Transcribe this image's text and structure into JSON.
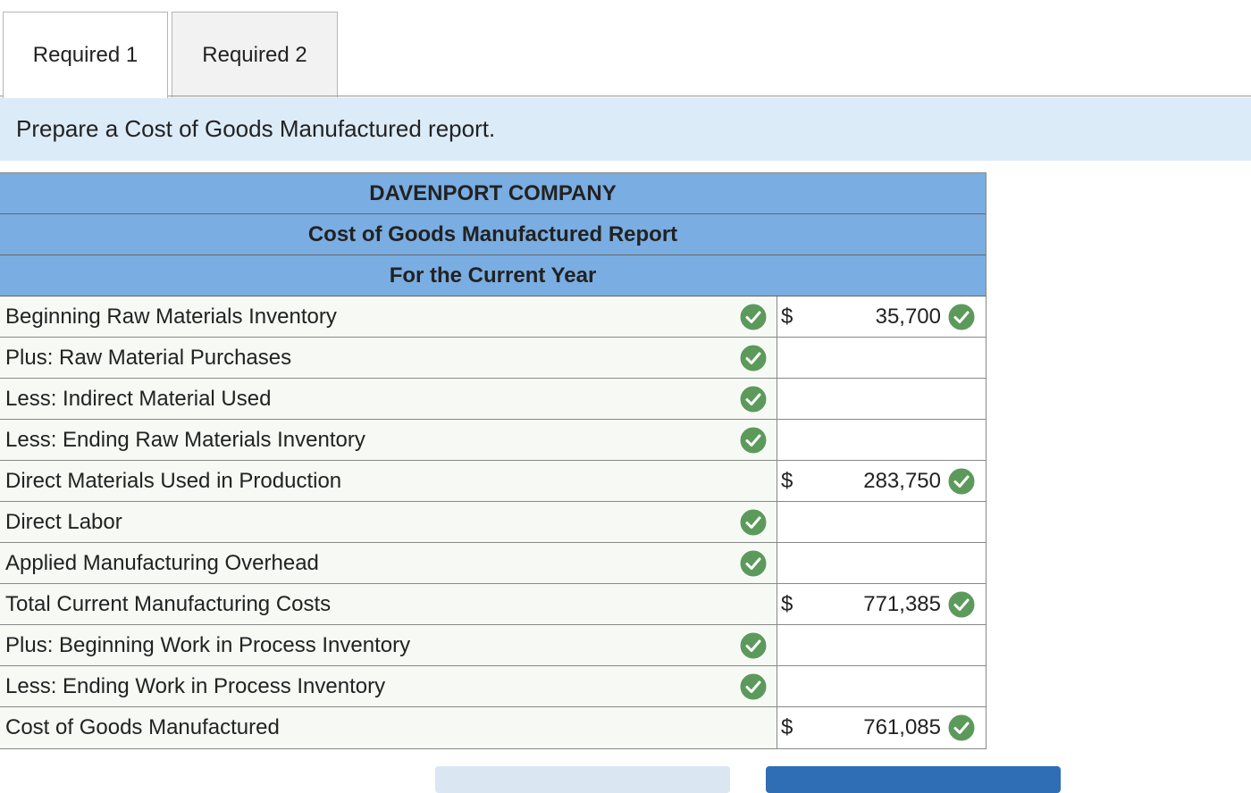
{
  "tabs": [
    "Required 1",
    "Required 2"
  ],
  "instruction": "Prepare a Cost of Goods Manufactured report.",
  "report": {
    "company": "DAVENPORT COMPANY",
    "title": "Cost of Goods Manufactured Report",
    "period": "For the Current Year",
    "rows": [
      {
        "label": "Beginning Raw Materials Inventory",
        "label_check": true,
        "currency": "$",
        "amount": "35,700"
      },
      {
        "label": "Plus: Raw Material Purchases",
        "label_check": true
      },
      {
        "label": "Less: Indirect Material Used",
        "label_check": true
      },
      {
        "label": "Less: Ending Raw Materials Inventory",
        "label_check": true
      },
      {
        "label": "Direct Materials Used in Production",
        "label_check": false,
        "currency": "$",
        "amount": "283,750"
      },
      {
        "label": "Direct Labor",
        "label_check": true
      },
      {
        "label": "Applied Manufacturing Overhead",
        "label_check": true
      },
      {
        "label": "Total Current Manufacturing Costs",
        "label_check": false,
        "currency": "$",
        "amount": "771,385"
      },
      {
        "label": "Plus: Beginning Work in Process Inventory",
        "label_check": true
      },
      {
        "label": "Less: Ending Work in Process Inventory",
        "label_check": true
      },
      {
        "label": "Cost of Goods Manufactured",
        "label_check": false,
        "currency": "$",
        "amount": "761,085"
      }
    ]
  }
}
